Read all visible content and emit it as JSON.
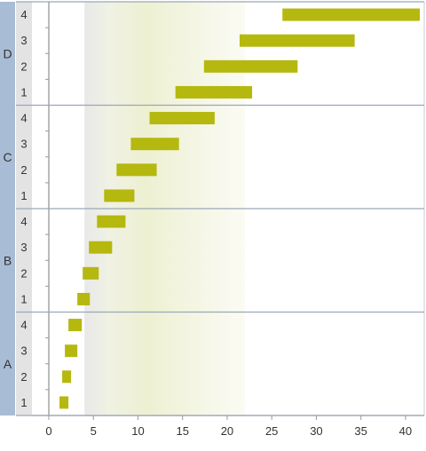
{
  "chart_data": {
    "type": "bar",
    "orientation": "horizontal",
    "groups": [
      "A",
      "B",
      "C",
      "D"
    ],
    "subcategories": [
      "1",
      "2",
      "3",
      "4"
    ],
    "bars": [
      {
        "group": "A",
        "sub": "1",
        "start": 1.2,
        "end": 2.2
      },
      {
        "group": "A",
        "sub": "2",
        "start": 1.5,
        "end": 2.5
      },
      {
        "group": "A",
        "sub": "3",
        "start": 1.8,
        "end": 3.2
      },
      {
        "group": "A",
        "sub": "4",
        "start": 2.2,
        "end": 3.7
      },
      {
        "group": "B",
        "sub": "1",
        "start": 3.2,
        "end": 4.6
      },
      {
        "group": "B",
        "sub": "2",
        "start": 3.8,
        "end": 5.6
      },
      {
        "group": "B",
        "sub": "3",
        "start": 4.5,
        "end": 7.1
      },
      {
        "group": "B",
        "sub": "4",
        "start": 5.4,
        "end": 8.6
      },
      {
        "group": "C",
        "sub": "1",
        "start": 6.2,
        "end": 9.6
      },
      {
        "group": "C",
        "sub": "2",
        "start": 7.6,
        "end": 12.1
      },
      {
        "group": "C",
        "sub": "3",
        "start": 9.2,
        "end": 14.6
      },
      {
        "group": "C",
        "sub": "4",
        "start": 11.3,
        "end": 18.6
      },
      {
        "group": "D",
        "sub": "1",
        "start": 14.2,
        "end": 22.8
      },
      {
        "group": "D",
        "sub": "2",
        "start": 17.4,
        "end": 27.9
      },
      {
        "group": "D",
        "sub": "3",
        "start": 21.4,
        "end": 34.3
      },
      {
        "group": "D",
        "sub": "4",
        "start": 26.2,
        "end": 41.6
      }
    ],
    "xlim": [
      0,
      42
    ],
    "xticks": [
      0,
      5,
      10,
      15,
      20,
      25,
      30,
      35,
      40
    ],
    "highlight_band": [
      4,
      22
    ],
    "title": "",
    "xlabel": "",
    "ylabel": "",
    "grid": false,
    "colors": {
      "bar": "#b5b80e",
      "group_band": "#a9bcd6",
      "sub_band": "#e3e3e3",
      "separator": "#9aa7b8",
      "band_left": "#e6e6e6",
      "band_center": "#f0f2d6"
    }
  }
}
